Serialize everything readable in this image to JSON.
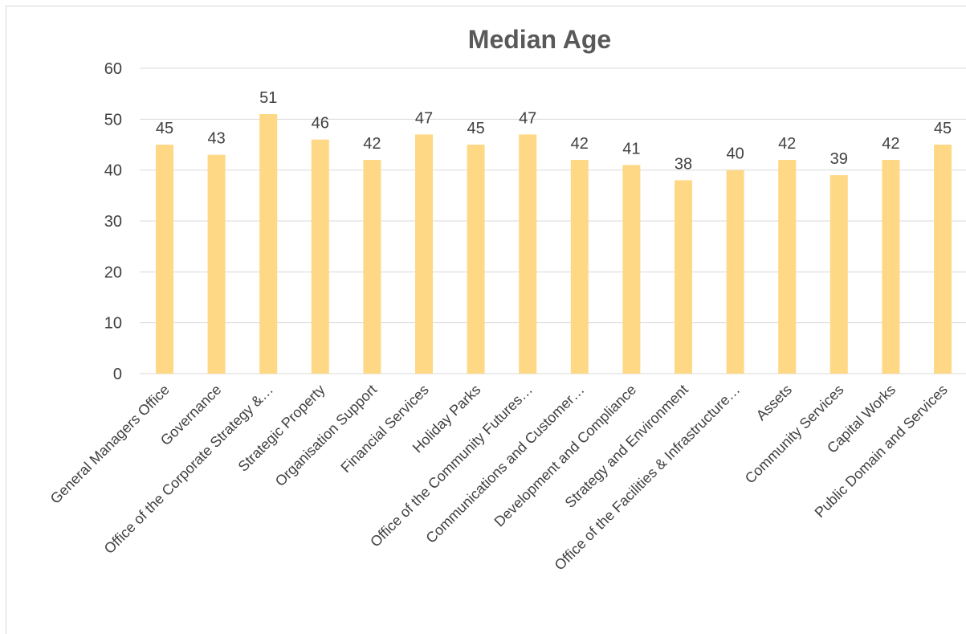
{
  "chart_data": {
    "type": "bar",
    "title": "Median Age",
    "xlabel": "",
    "ylabel": "",
    "ylim": [
      0,
      60
    ],
    "yticks": [
      0,
      10,
      20,
      30,
      40,
      50,
      60
    ],
    "grid": true,
    "legend": "none",
    "bar_color": "#ffd886",
    "categories": [
      "General Managers Office",
      "Governance",
      "Office of the Corporate Strategy &…",
      "Strategic Property",
      "Organisation Support",
      "Financial Services",
      "Holiday Parks",
      "Office of the Community Futures…",
      "Communications and Customer…",
      "Development and Compliance",
      "Strategy and Environment",
      "Office of the Facilities & Infrastructure…",
      "Assets",
      "Community Services",
      "Capital Works",
      "Public Domain and Services"
    ],
    "values": [
      45,
      43,
      51,
      46,
      42,
      47,
      45,
      47,
      42,
      41,
      38,
      40,
      42,
      39,
      42,
      45
    ],
    "data_labels": [
      "45",
      "43",
      "51",
      "46",
      "42",
      "47",
      "45",
      "47",
      "42",
      "41",
      "38",
      "40",
      "42",
      "39",
      "42",
      "45"
    ]
  }
}
